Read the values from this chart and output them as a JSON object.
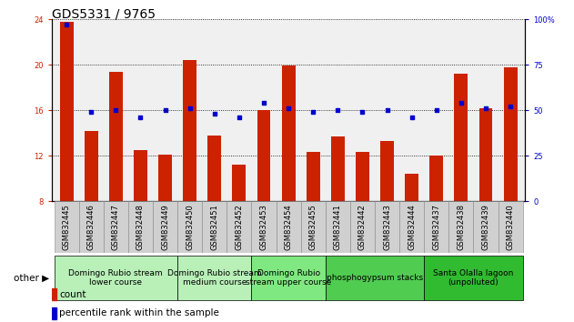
{
  "title": "GDS5331 / 9765",
  "samples": [
    "GSM832445",
    "GSM832446",
    "GSM832447",
    "GSM832448",
    "GSM832449",
    "GSM832450",
    "GSM832451",
    "GSM832452",
    "GSM832453",
    "GSM832454",
    "GSM832455",
    "GSM832441",
    "GSM832442",
    "GSM832443",
    "GSM832444",
    "GSM832437",
    "GSM832438",
    "GSM832439",
    "GSM832440"
  ],
  "counts": [
    23.8,
    14.2,
    19.4,
    12.5,
    12.1,
    20.4,
    13.8,
    11.2,
    16.0,
    19.9,
    12.3,
    13.7,
    12.3,
    13.3,
    10.4,
    12.0,
    19.2,
    16.2,
    19.8
  ],
  "percentiles": [
    97,
    49,
    50,
    46,
    50,
    51,
    48,
    46,
    54,
    51,
    49,
    50,
    49,
    50,
    46,
    50,
    54,
    51,
    52
  ],
  "groups": [
    {
      "label": "Domingo Rubio stream\nlower course",
      "color": "#b8f0b8",
      "start": 0,
      "end": 5
    },
    {
      "label": "Domingo Rubio stream\nmedium course",
      "color": "#b8f0b8",
      "start": 5,
      "end": 8
    },
    {
      "label": "Domingo Rubio\nstream upper course",
      "color": "#80e880",
      "start": 8,
      "end": 11
    },
    {
      "label": "phosphogypsum stacks",
      "color": "#50cc50",
      "start": 11,
      "end": 15
    },
    {
      "label": "Santa Olalla lagoon\n(unpolluted)",
      "color": "#30bb30",
      "start": 15,
      "end": 19
    }
  ],
  "ylim_left": [
    8,
    24
  ],
  "ylim_right": [
    0,
    100
  ],
  "yticks_left": [
    8,
    12,
    16,
    20,
    24
  ],
  "yticks_right": [
    0,
    25,
    50,
    75,
    100
  ],
  "bar_color": "#cc2200",
  "dot_color": "#0000cc",
  "plot_bg": "#f0f0f0",
  "sample_bg": "#d0d0d0",
  "title_fontsize": 10,
  "tick_fontsize": 6,
  "group_fontsize": 6.5,
  "legend_fontsize": 7.5
}
